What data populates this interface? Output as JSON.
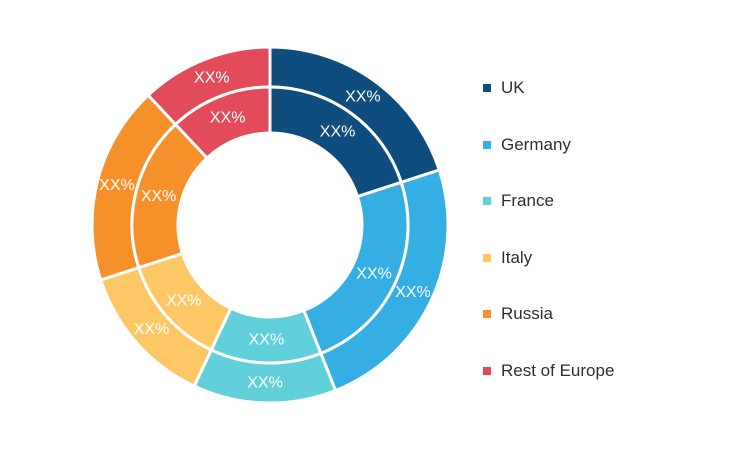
{
  "chart_data": {
    "type": "pie",
    "variant": "double-donut",
    "categories": [
      "UK",
      "Germany",
      "France",
      "Italy",
      "Russia",
      "Rest of Europe"
    ],
    "colors": [
      "#0e4d7e",
      "#35aee3",
      "#62d0db",
      "#fdc765",
      "#f6902b",
      "#e24b5a"
    ],
    "rings": [
      {
        "ring": "outer",
        "values": [
          20,
          24,
          13,
          13,
          18,
          12
        ],
        "labels": [
          "XX%",
          "XX%",
          "XX%",
          "XX%",
          "XX%",
          "XX%"
        ]
      },
      {
        "ring": "inner",
        "values": [
          20,
          24,
          13,
          13,
          18,
          12
        ],
        "labels": [
          "XX%",
          "XX%",
          "XX%",
          "XX%",
          "XX%",
          "XX%"
        ]
      }
    ],
    "legend_position": "right",
    "title": "",
    "xlabel": "",
    "ylabel": ""
  }
}
